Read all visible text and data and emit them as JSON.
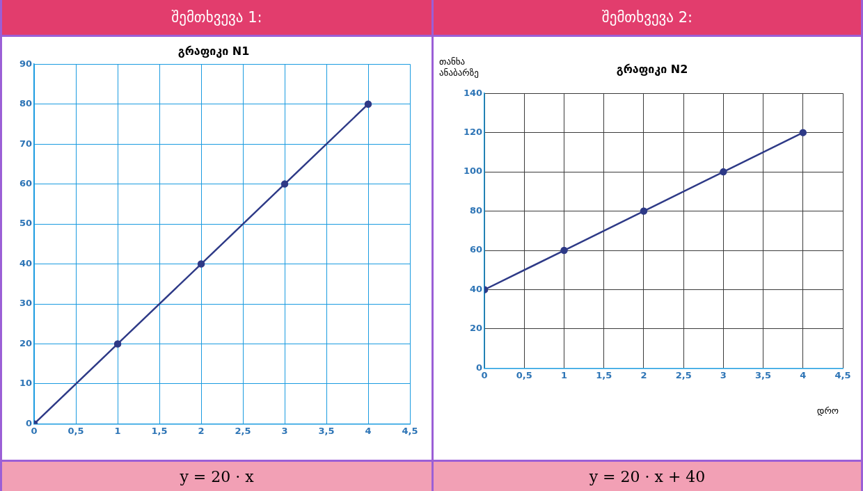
{
  "chart_data": [
    {
      "type": "line",
      "title": "გრაფიკი N1",
      "annotations": [
        "შემთხვევა 1:",
        "y = 20 · x"
      ],
      "x": [
        0,
        1,
        2,
        3,
        4
      ],
      "series": [
        {
          "color": "#2e3a87",
          "values": [
            0,
            20,
            40,
            60,
            80
          ]
        }
      ],
      "xlim": [
        0,
        4.5
      ],
      "xticks": [
        0,
        {
          "value": 0.5,
          "label": "0,5"
        },
        1,
        {
          "value": 1.5,
          "label": "1,5"
        },
        2,
        {
          "value": 2.5,
          "label": "2,5"
        },
        3,
        {
          "value": 3.5,
          "label": "3,5"
        },
        4,
        {
          "value": 4.5,
          "label": "4,5"
        }
      ],
      "ylim": [
        0,
        90
      ],
      "yticks": [
        0,
        10,
        20,
        30,
        40,
        50,
        60,
        70,
        80,
        90
      ],
      "grid": true,
      "legend": false,
      "marker": "circle",
      "line_style": "solid"
    },
    {
      "type": "line",
      "title": "გრაფიკი N2",
      "xlabel": "დრო",
      "ylabel": "თანხა ანაბარზე",
      "annotations": [
        "შემთხვევა 2:",
        "y = 20 · x + 40"
      ],
      "x": [
        0,
        1,
        2,
        3,
        4
      ],
      "series": [
        {
          "color": "#2e3a87",
          "values": [
            40,
            60,
            80,
            100,
            120
          ]
        }
      ],
      "xlim": [
        0,
        4.5
      ],
      "xticks": [
        0,
        {
          "value": 0.5,
          "label": "0,5"
        },
        1,
        {
          "value": 1.5,
          "label": "1,5"
        },
        2,
        {
          "value": 2.5,
          "label": "2,5"
        },
        3,
        {
          "value": 3.5,
          "label": "3,5"
        },
        4,
        {
          "value": 4.5,
          "label": "4,5"
        }
      ],
      "ylim": [
        0,
        140
      ],
      "yticks": [
        0,
        20,
        40,
        60,
        80,
        100,
        120,
        140
      ],
      "grid": true,
      "legend": false,
      "marker": "circle",
      "line_style": "solid"
    }
  ]
}
